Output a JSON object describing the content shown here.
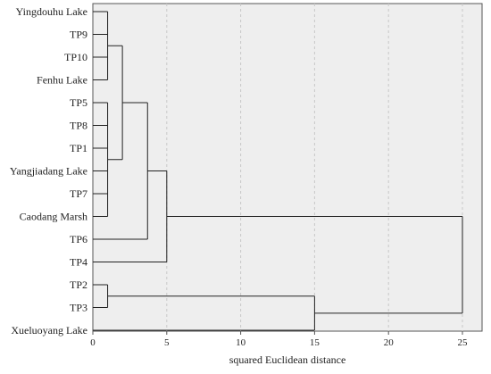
{
  "chart_data": {
    "type": "dendrogram",
    "xlabel": "squared Euclidean distance",
    "xlim": [
      0,
      26
    ],
    "xticks": [
      0,
      5,
      10,
      15,
      20,
      25
    ],
    "grid": "vertical dashed",
    "leaves": [
      "Yingdouhu Lake",
      "TP9",
      "TP10",
      "Fenhu Lake",
      "TP5",
      "TP8",
      "TP1",
      "Yangjiadang Lake",
      "TP7",
      "Caodang Marsh",
      "TP6",
      "TP4",
      "TP2",
      "TP3",
      "Xueluoyang Lake"
    ],
    "merges": [
      {
        "id": "A",
        "children": [
          "Yingdouhu Lake",
          "TP9",
          "TP10",
          "Fenhu Lake"
        ],
        "height": 1
      },
      {
        "id": "B",
        "children": [
          "TP5",
          "TP8",
          "TP1",
          "Yangjiadang Lake",
          "TP7",
          "Caodang Marsh"
        ],
        "height": 1
      },
      {
        "id": "C",
        "children": [
          "TP2",
          "TP3"
        ],
        "height": 1
      },
      {
        "id": "D",
        "children": [
          "A",
          "B"
        ],
        "height": 2
      },
      {
        "id": "E",
        "children": [
          "D",
          "TP6"
        ],
        "height": 3.7
      },
      {
        "id": "F",
        "children": [
          "E",
          "TP4"
        ],
        "height": 5
      },
      {
        "id": "G",
        "children": [
          "C",
          "Xueluoyang Lake"
        ],
        "height": 15
      },
      {
        "id": "H",
        "children": [
          "F",
          "G"
        ],
        "height": 25
      }
    ]
  },
  "colors": {
    "plot_background": "#eeeeee",
    "line": "#222222",
    "grid": "#c8c8c8"
  }
}
